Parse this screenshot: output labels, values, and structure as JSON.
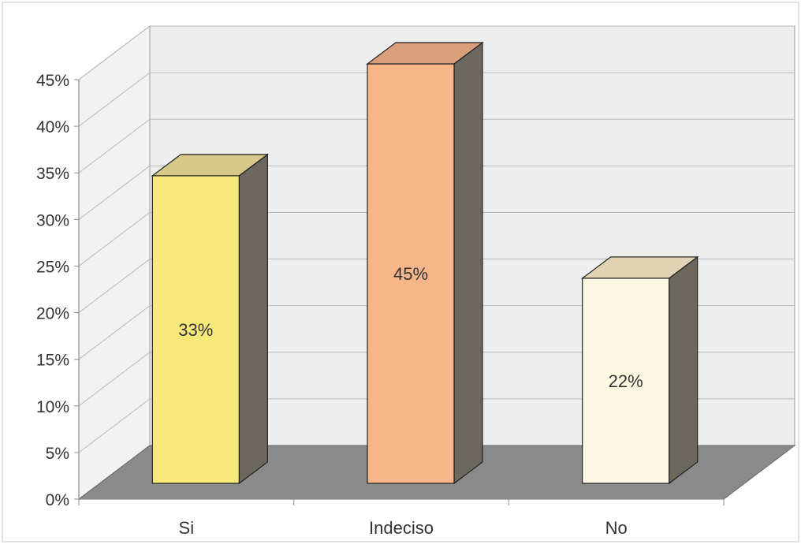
{
  "chart_data": {
    "type": "bar",
    "categories": [
      "Si",
      "Indeciso",
      "No"
    ],
    "values": [
      33,
      45,
      22
    ],
    "data_labels": [
      "33%",
      "45%",
      "22%"
    ],
    "ylim": [
      0,
      45
    ],
    "y_ticks": [
      "0%",
      "5%",
      "10%",
      "15%",
      "20%",
      "25%",
      "30%",
      "35%",
      "40%",
      "45%"
    ],
    "grid": true,
    "legend": "none",
    "style": "3d-column",
    "colors": {
      "bars": [
        "#f7e87a",
        "#f6b68a",
        "#fdf8e4"
      ],
      "bar_tops": [
        "#d8c78a",
        "#d99f7a",
        "#e4d2b4"
      ],
      "bar_side": "#6d685e",
      "back_wall": "#eeeeee",
      "side_wall": "#f2f2f2",
      "floor": "#8a8a8a",
      "gridline": "#b9b9b9",
      "frame": "#d8d8d8"
    }
  }
}
